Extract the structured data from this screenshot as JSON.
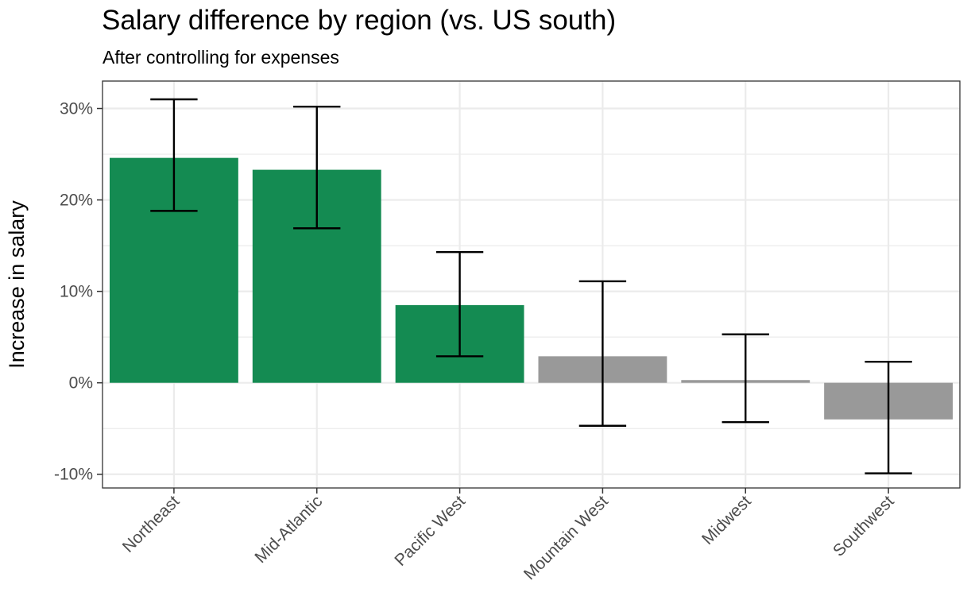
{
  "chart_data": {
    "type": "bar",
    "title": "Salary difference by region (vs. US south)",
    "subtitle": "After controlling for expenses",
    "xlabel": "",
    "ylabel": "Increase in salary",
    "categories": [
      "Northeast",
      "Mid-Atlantic",
      "Pacific West",
      "Mountain West",
      "Midwest",
      "Southwest"
    ],
    "values": [
      24.6,
      23.3,
      8.5,
      2.9,
      0.3,
      -4.0
    ],
    "error_low": [
      18.8,
      16.9,
      2.9,
      -4.7,
      -4.3,
      -9.9
    ],
    "error_high": [
      31.0,
      30.2,
      14.3,
      11.1,
      5.3,
      2.3
    ],
    "significant": [
      true,
      true,
      true,
      false,
      false,
      false
    ],
    "ylim": [
      -11.5,
      33.0
    ],
    "yticks": [
      -10,
      0,
      10,
      20,
      30
    ],
    "ytick_labels": [
      "-10%",
      "0%",
      "10%",
      "20%",
      "30%"
    ],
    "grid": true,
    "colors": {
      "significant": "#148B52",
      "not_significant": "#999999",
      "error_bar": "#000000",
      "grid": "#ebebeb",
      "panel_border": "#333333"
    }
  }
}
